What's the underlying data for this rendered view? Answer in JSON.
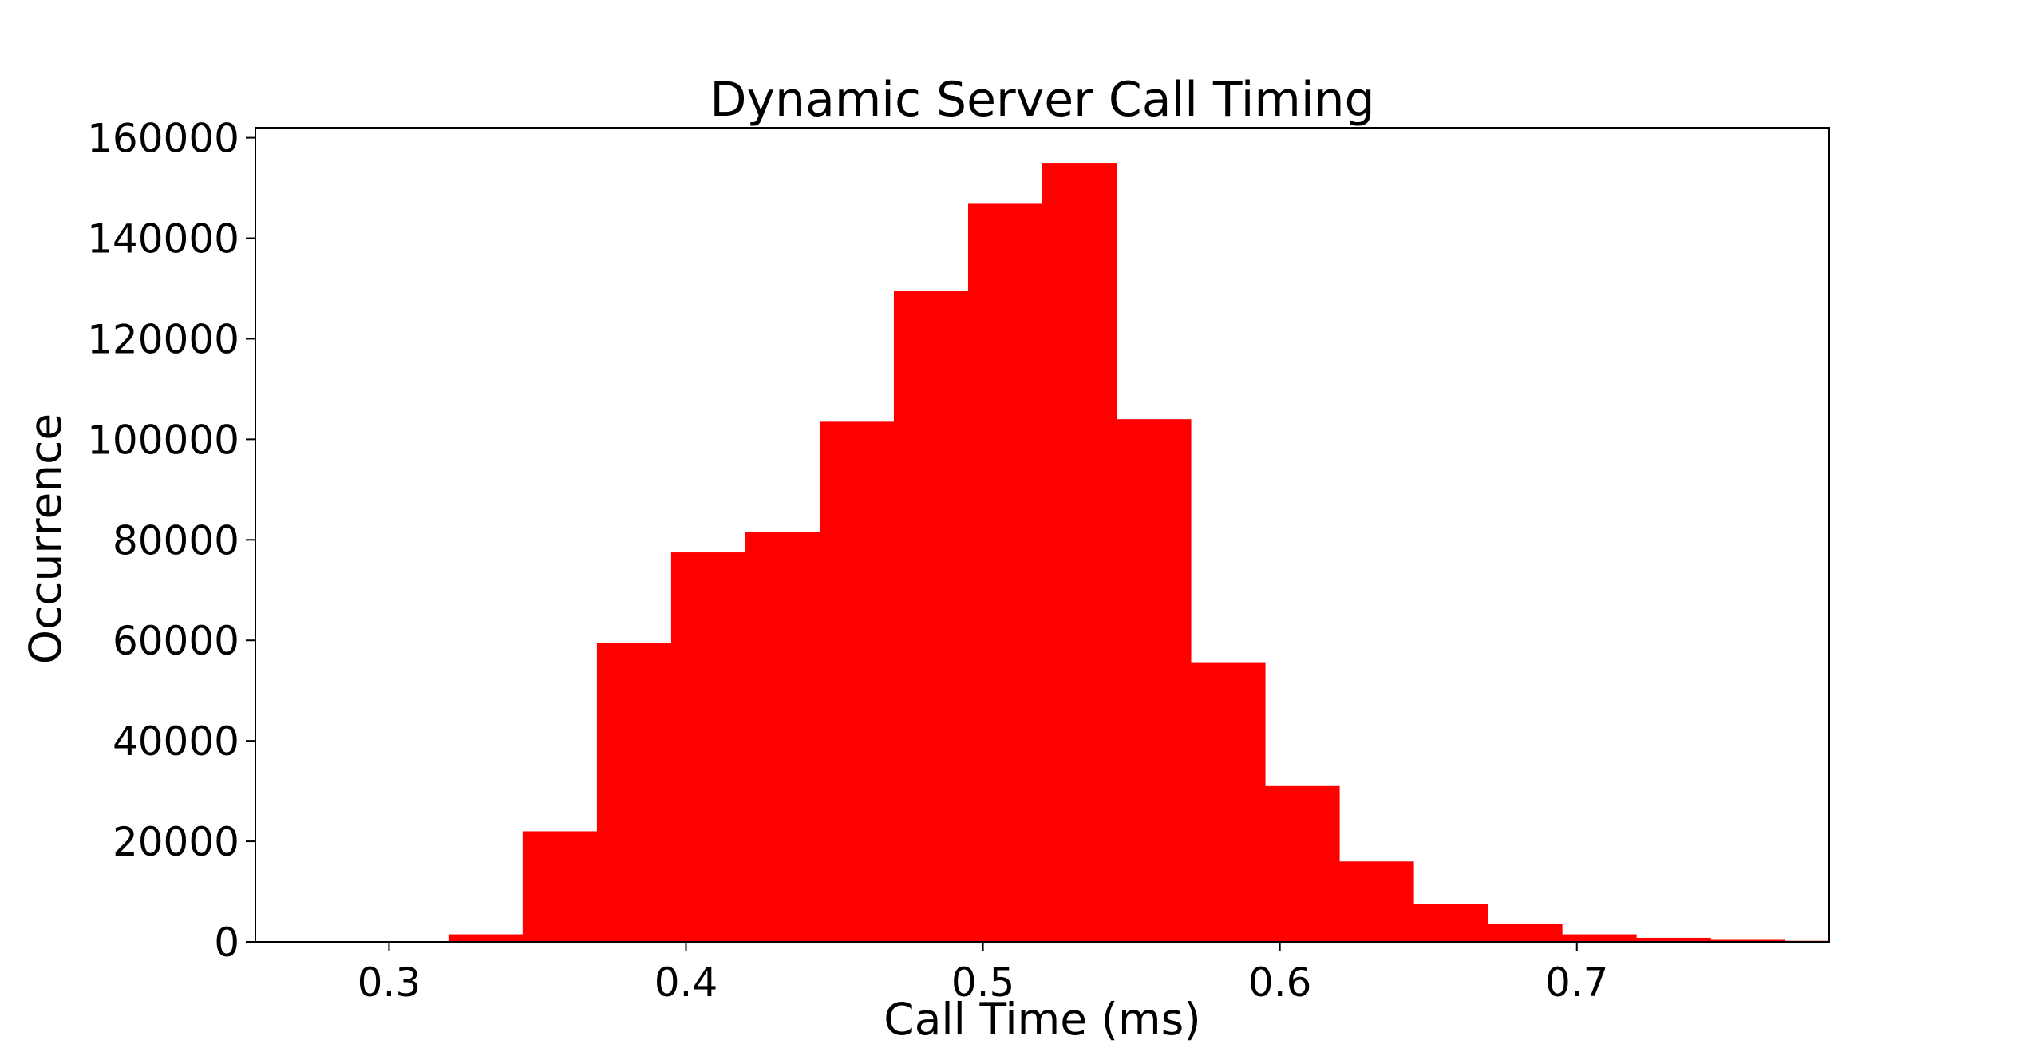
{
  "chart_data": {
    "type": "bar",
    "title": "Dynamic Server Call Timing",
    "xlabel": "Call Time (ms)",
    "ylabel": "Occurrence",
    "xlim": [
      0.255,
      0.785
    ],
    "ylim": [
      0,
      162000
    ],
    "xticks": [
      0.3,
      0.4,
      0.5,
      0.6,
      0.7
    ],
    "xtick_labels": [
      "0.3",
      "0.4",
      "0.5",
      "0.6",
      "0.7"
    ],
    "yticks": [
      0,
      20000,
      40000,
      60000,
      80000,
      100000,
      120000,
      140000,
      160000
    ],
    "ytick_labels": [
      "0",
      "20000",
      "40000",
      "60000",
      "80000",
      "100000",
      "120000",
      "140000",
      "160000"
    ],
    "bar_color": "#ff0000",
    "grid": false,
    "bin_edges": [
      0.32,
      0.345,
      0.37,
      0.395,
      0.42,
      0.445,
      0.47,
      0.495,
      0.52,
      0.545,
      0.57,
      0.595,
      0.62,
      0.645,
      0.67,
      0.695,
      0.72,
      0.745,
      0.77,
      0.785
    ],
    "values": [
      1500,
      22000,
      59500,
      77500,
      81500,
      103500,
      129500,
      147000,
      155000,
      104000,
      55500,
      31000,
      16000,
      7500,
      3500,
      1500,
      800,
      400,
      200
    ]
  }
}
